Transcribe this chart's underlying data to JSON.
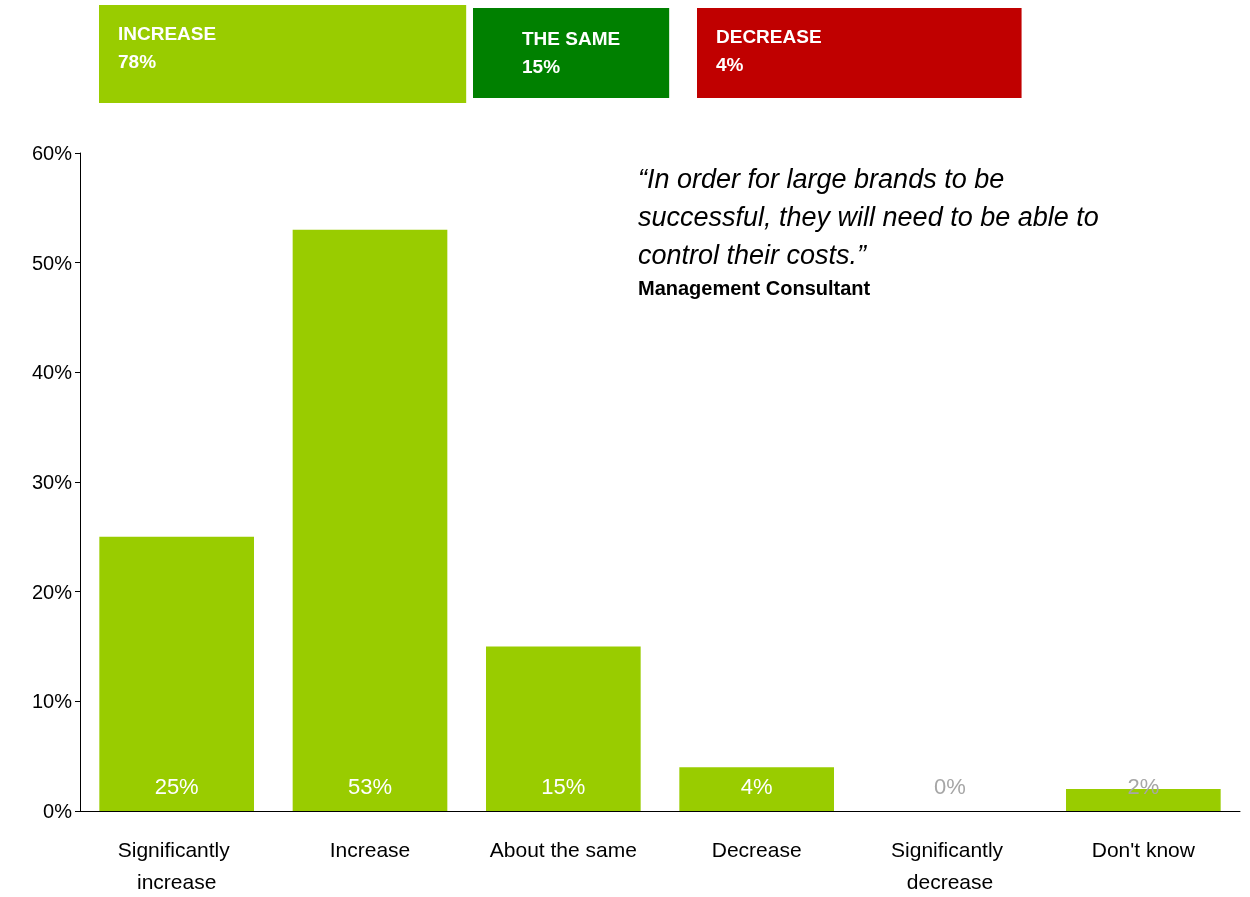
{
  "chart_data": {
    "type": "bar",
    "categories": [
      "Significantly increase",
      "Increase",
      "About the same",
      "Decrease",
      "Significantly decrease",
      "Don't know"
    ],
    "values": [
      25,
      53,
      15,
      4,
      0,
      2
    ],
    "color": "#99cc00",
    "ylim": [
      0,
      60
    ],
    "yticks": [
      {
        "value": 0,
        "label": "0%"
      },
      {
        "value": 10,
        "label": "10%"
      },
      {
        "value": 20,
        "label": "20%"
      },
      {
        "value": 30,
        "label": "30%"
      },
      {
        "value": 40,
        "label": "40%"
      },
      {
        "value": 50,
        "label": "50%"
      },
      {
        "value": 60,
        "label": "60%"
      }
    ],
    "grid": false,
    "value_labels": [
      "25%",
      "53%",
      "15%",
      "4%",
      "0%",
      "2%"
    ],
    "annotations": [
      "INCREASE\n78%",
      "THE SAME\n15%",
      "DECREASE\n4%",
      "“In order for large brands to be\nsuccessful, they will need to be able to\ncontrol their costs.”",
      "Management Consultant"
    ]
  }
}
